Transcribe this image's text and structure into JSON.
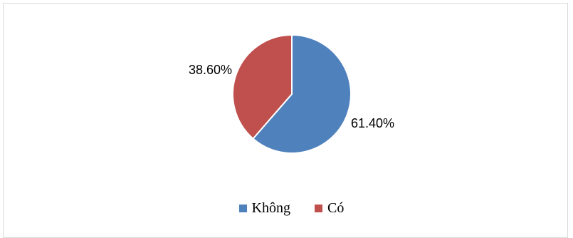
{
  "chart_data": {
    "type": "pie",
    "slices": [
      {
        "name": "Không",
        "value": 61.4,
        "label": "61.40%",
        "color": "#4f81bd"
      },
      {
        "name": "Có",
        "value": 38.6,
        "label": "38.60%",
        "color": "#c0504d"
      }
    ],
    "legend": {
      "placement": "bottom",
      "items": [
        {
          "label": "Không",
          "color": "#4f81bd"
        },
        {
          "label": "Có",
          "color": "#c0504d"
        }
      ]
    }
  }
}
